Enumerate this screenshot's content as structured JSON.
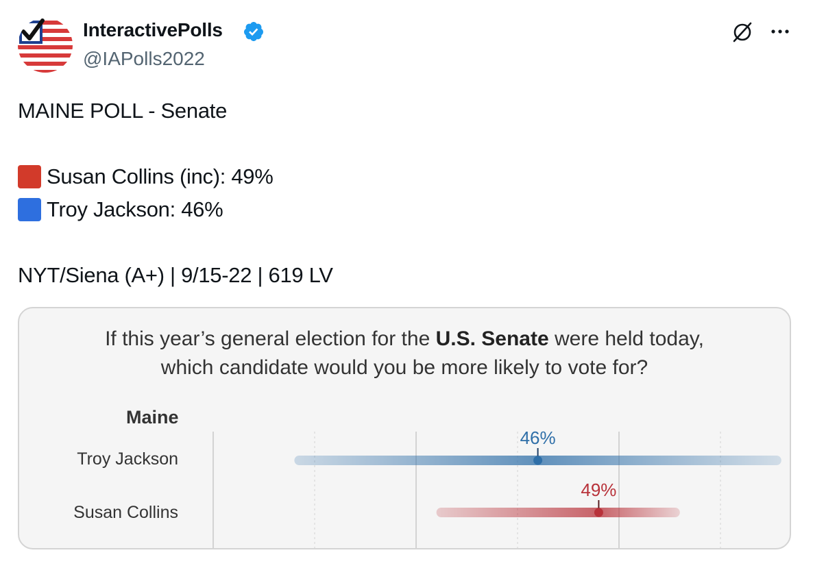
{
  "account": {
    "display_name": "InteractivePolls",
    "handle": "@IAPolls2022"
  },
  "tweet": {
    "title_line": "MAINE POLL - Senate",
    "candidates": [
      {
        "swatch_color": "#d23a2a",
        "text": "Susan Collins (inc): 49%"
      },
      {
        "swatch_color": "#2e6fdf",
        "text": "Troy Jackson: 46%"
      }
    ],
    "source_line": "NYT/Siena (A+) | 9/15-22 | 619 LV"
  },
  "card": {
    "question_line1_pre": "If this year’s general election for the ",
    "question_line1_bold": "U.S. Senate",
    "question_line1_post": " were held today,",
    "question_line2": "which candidate would you be more likely to vote for?",
    "state": "Maine"
  },
  "chart_data": {
    "type": "scatter",
    "title": "If this year’s general election for the U.S. Senate were held today, which candidate would you be more likely to vote for?",
    "subtitle": "Maine",
    "categories": [
      "Troy Jackson",
      "Susan Collins"
    ],
    "series": [
      {
        "name": "Troy Jackson",
        "value": 46,
        "label": "46%",
        "range": [
          34,
          58
        ],
        "color": "#2f6fa8"
      },
      {
        "name": "Susan Collins",
        "value": 49,
        "label": "49%",
        "range": [
          41,
          53
        ],
        "color": "#b8323a"
      }
    ],
    "x_range": [
      30,
      60
    ],
    "grid": true,
    "legend": "none"
  },
  "colors": {
    "text": "#0f1419",
    "secondary": "#536471",
    "verified": "#1d9bf0",
    "card_bg": "#f5f5f5"
  },
  "icons": {
    "verified": "verified-badge-icon",
    "grok": "grok-icon",
    "more": "more-icon"
  }
}
